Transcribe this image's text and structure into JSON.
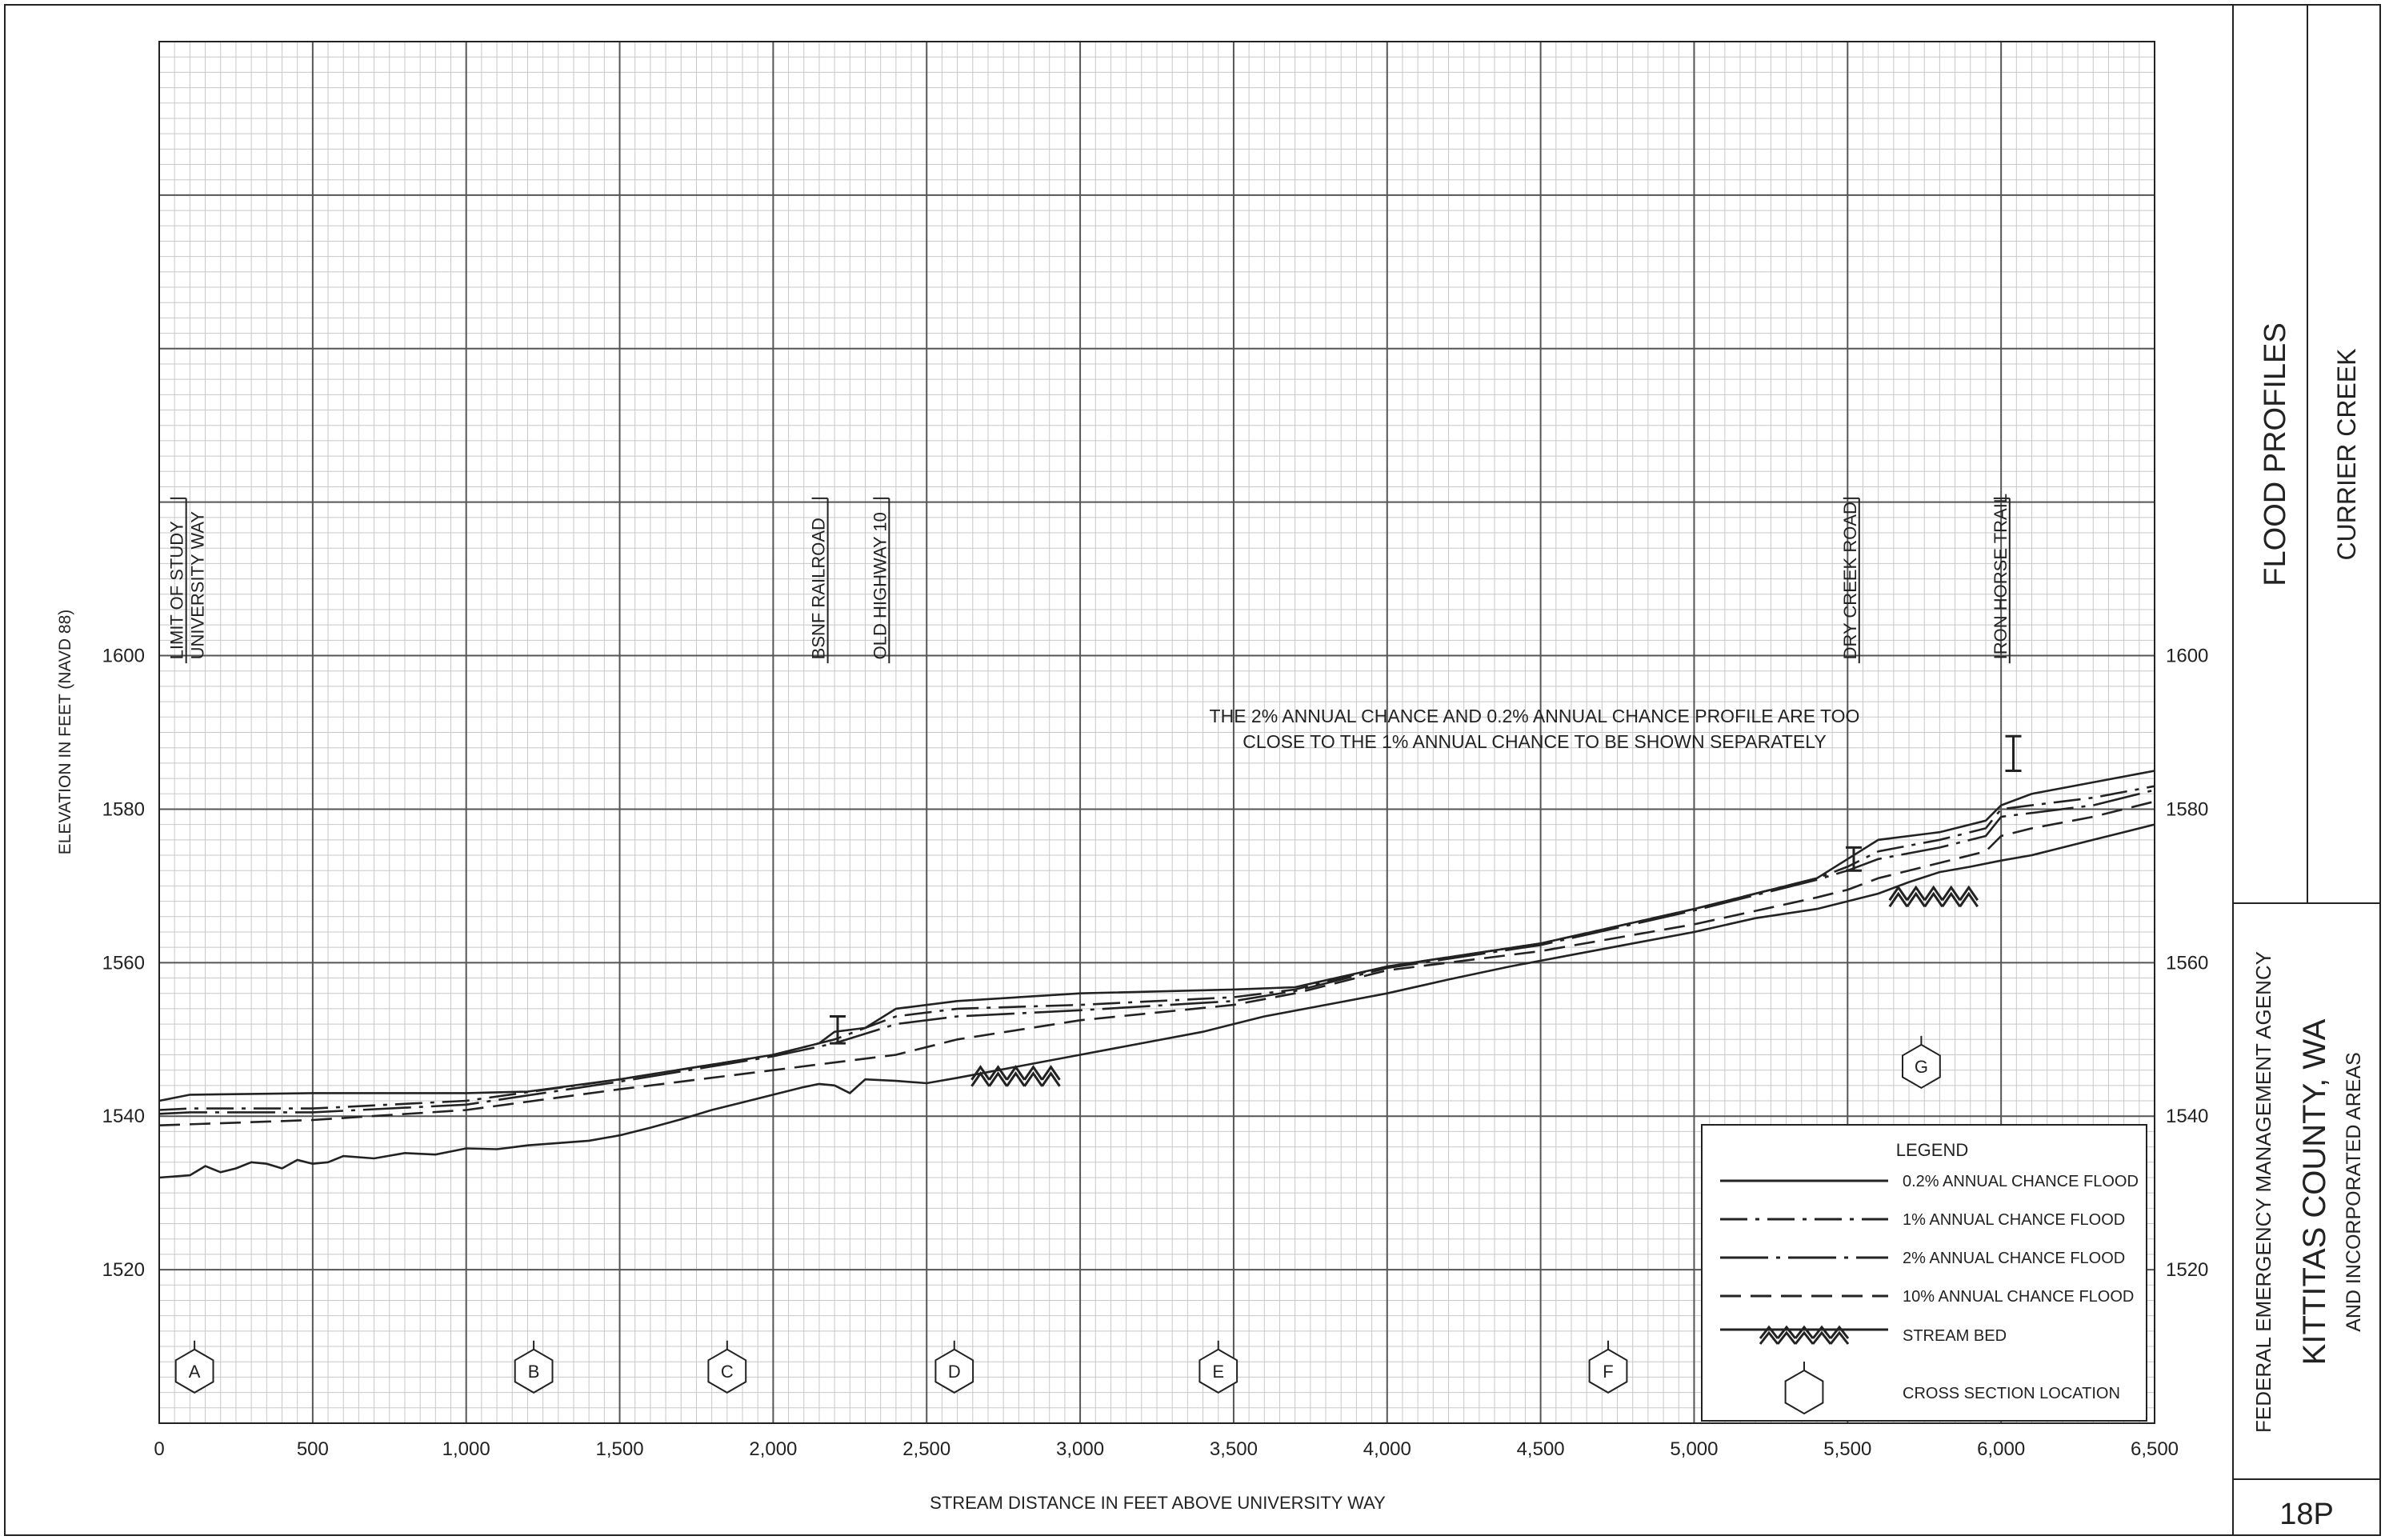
{
  "chart_data": {
    "type": "line",
    "xlabel": "STREAM DISTANCE IN FEET ABOVE UNIVERSITY WAY",
    "ylabel": "ELEVATION IN FEET (NAVD 88)",
    "xlim": [
      0,
      6500
    ],
    "ylim": [
      1500,
      1680
    ],
    "x_ticks": [
      0,
      500,
      1000,
      1500,
      2000,
      2500,
      3000,
      3500,
      4000,
      4500,
      5000,
      5500,
      6000,
      6500
    ],
    "x_tick_labels": [
      "0",
      "500",
      "1,000",
      "1,500",
      "2,000",
      "2,500",
      "3,000",
      "3,500",
      "4,000",
      "4,500",
      "5,000",
      "5,500",
      "6,000",
      "6,500"
    ],
    "y_ticks": [
      1520,
      1540,
      1560,
      1580,
      1600
    ],
    "y_tick_labels": [
      "1520",
      "1540",
      "1560",
      "1580",
      "1600"
    ],
    "grid": true,
    "legend_position": "bottom-right",
    "series": [
      {
        "name": "0.2% ANNUAL CHANCE FLOOD",
        "style": "solid",
        "x": [
          0,
          100,
          500,
          1000,
          1200,
          1500,
          2000,
          2150,
          2200,
          2300,
          2400,
          2600,
          3000,
          3500,
          3700,
          4000,
          4500,
          5000,
          5400,
          5500,
          5600,
          5800,
          5950,
          6000,
          6100,
          6300,
          6500
        ],
        "y": [
          1542,
          1542.8,
          1543,
          1543,
          1543.2,
          1544.8,
          1548,
          1549.5,
          1551,
          1551.5,
          1554,
          1555,
          1556,
          1556.5,
          1556.8,
          1559.5,
          1562.5,
          1567,
          1571,
          1573.5,
          1576,
          1577,
          1578.5,
          1580.5,
          1582,
          1583.5,
          1585
        ]
      },
      {
        "name": "1% ANNUAL CHANCE FLOOD",
        "style": "dash-dot",
        "x": [
          0,
          100,
          500,
          1000,
          1500,
          2000,
          2200,
          2400,
          2600,
          3000,
          3500,
          3700,
          4000,
          4500,
          5000,
          5400,
          5500,
          5600,
          5800,
          5950,
          6000,
          6100,
          6300,
          6500
        ],
        "y": [
          1540.8,
          1541,
          1541,
          1542,
          1544.8,
          1548,
          1550,
          1553,
          1554,
          1554.5,
          1555.5,
          1556.5,
          1559.5,
          1562.5,
          1567,
          1571,
          1572.5,
          1574.5,
          1576,
          1577.5,
          1580,
          1580.5,
          1581.5,
          1583
        ]
      },
      {
        "name": "2% ANNUAL CHANCE FLOOD",
        "style": "long-dash-dot",
        "x": [
          0,
          100,
          500,
          1000,
          1500,
          2000,
          2200,
          2400,
          2600,
          3000,
          3500,
          3700,
          4000,
          4500,
          5000,
          5400,
          5500,
          5600,
          5800,
          5950,
          6000,
          6100,
          6300,
          6500
        ],
        "y": [
          1540.3,
          1540.5,
          1540.5,
          1541.5,
          1544.5,
          1547.8,
          1549.5,
          1552,
          1553,
          1553.8,
          1555,
          1556.3,
          1559.3,
          1562.3,
          1566.8,
          1570.8,
          1572,
          1573.5,
          1575,
          1576.5,
          1579,
          1579.5,
          1580.5,
          1582.5
        ]
      },
      {
        "name": "10% ANNUAL CHANCE FLOOD",
        "style": "dashed",
        "x": [
          0,
          500,
          1000,
          1500,
          2000,
          2200,
          2400,
          2600,
          3000,
          3500,
          3700,
          4000,
          4500,
          5000,
          5400,
          5500,
          5600,
          5800,
          5950,
          6000,
          6100,
          6300,
          6500
        ],
        "y": [
          1538.8,
          1539.5,
          1540.8,
          1543.5,
          1546,
          1547,
          1548,
          1550,
          1552.5,
          1554.5,
          1556,
          1559,
          1561.5,
          1565,
          1568.5,
          1569.5,
          1571,
          1573,
          1574.5,
          1576.5,
          1577.5,
          1579,
          1581
        ]
      },
      {
        "name": "STREAM BED",
        "style": "solid",
        "x": [
          0,
          100,
          150,
          200,
          250,
          300,
          350,
          400,
          450,
          500,
          550,
          600,
          700,
          800,
          900,
          1000,
          1100,
          1200,
          1300,
          1400,
          1500,
          1600,
          1700,
          1800,
          1900,
          2000,
          2100,
          2150,
          2200,
          2250,
          2300,
          2400,
          2500,
          2600,
          2800,
          3000,
          3200,
          3400,
          3600,
          3800,
          4000,
          4200,
          4400,
          4600,
          4800,
          5000,
          5200,
          5400,
          5500,
          5600,
          5700,
          5800,
          5900,
          6000,
          6100,
          6200,
          6300,
          6400,
          6500
        ],
        "y": [
          1532,
          1532.3,
          1533.5,
          1532.7,
          1533.2,
          1534,
          1533.8,
          1533.2,
          1534.3,
          1533.8,
          1534,
          1534.8,
          1534.5,
          1535.2,
          1535,
          1535.8,
          1535.7,
          1536.2,
          1536.5,
          1536.8,
          1537.5,
          1538.5,
          1539.6,
          1540.8,
          1541.8,
          1542.8,
          1543.8,
          1544.2,
          1544,
          1543,
          1544.8,
          1544.6,
          1544.3,
          1545,
          1546.5,
          1548,
          1549.5,
          1551,
          1553,
          1554.5,
          1556,
          1557.8,
          1559.5,
          1561,
          1562.5,
          1564,
          1565.8,
          1567,
          1568,
          1569,
          1570.5,
          1571.8,
          1572.5,
          1573.3,
          1574,
          1575,
          1576,
          1577,
          1578
        ]
      }
    ],
    "structures": [
      {
        "name": "LIMIT OF STUDY",
        "x": 35
      },
      {
        "name": "UNIVERSITY WAY",
        "x": 35
      },
      {
        "name": "BSNF RAILROAD",
        "x": 2200
      },
      {
        "name": "OLD HIGHWAY 10",
        "x": 2400
      },
      {
        "name": "DRY CREEK ROAD",
        "x": 5560
      },
      {
        "name": "IRON HORSE TRAIL",
        "x": 6040
      }
    ],
    "cross_sections": [
      {
        "label": "A",
        "x": 115
      },
      {
        "label": "B",
        "x": 1220
      },
      {
        "label": "C",
        "x": 1850
      },
      {
        "label": "D",
        "x": 2590
      },
      {
        "label": "E",
        "x": 3450
      },
      {
        "label": "F",
        "x": 4720
      },
      {
        "label": "G",
        "x": 5740
      }
    ],
    "annotation": {
      "line1": "THE 2% ANNUAL CHANCE AND 0.2% ANNUAL CHANCE PROFILE ARE TOO",
      "line2": "CLOSE TO THE 1% ANNUAL CHANCE TO BE SHOWN SEPARATELY"
    },
    "legend": {
      "title": "LEGEND",
      "items": [
        {
          "label": "0.2% ANNUAL CHANCE FLOOD",
          "style": "solid"
        },
        {
          "label": "1% ANNUAL CHANCE FLOOD",
          "style": "dash-dot"
        },
        {
          "label": "2% ANNUAL CHANCE FLOOD",
          "style": "long-dash-dot"
        },
        {
          "label": "10% ANNUAL CHANCE FLOOD",
          "style": "dashed"
        },
        {
          "label": "STREAM BED",
          "style": "stream-bed"
        },
        {
          "label": "CROSS SECTION LOCATION",
          "style": "hexagon"
        }
      ]
    }
  },
  "title_block": {
    "title": "FLOOD PROFILES",
    "stream": "CURRIER CREEK",
    "agency": "FEDERAL EMERGENCY MANAGEMENT AGENCY",
    "county": "KITTITAS COUNTY, WA",
    "areas": "AND INCORPORATED AREAS",
    "panel": "18P"
  },
  "colors": {
    "ink": "#222222",
    "grid_minor": "#c8c8c8",
    "grid_major": "#555555",
    "background": "#ffffff"
  }
}
